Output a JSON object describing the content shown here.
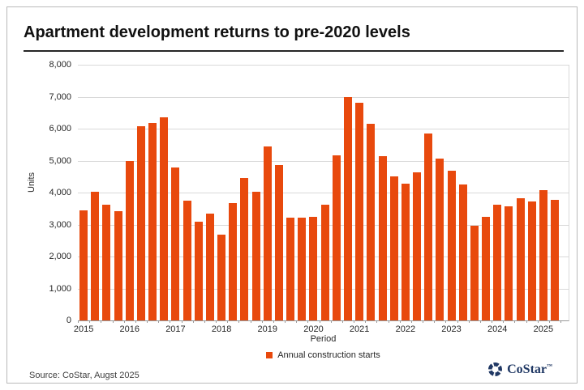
{
  "title": "Apartment development returns to pre-2020 levels",
  "source": "Source: CoStar, Augst 2025",
  "logo": {
    "text": "CoStar",
    "tm": "™",
    "mark": "costar-pinwheel-icon",
    "color": "#203864"
  },
  "colors": {
    "bar": "#E8490D",
    "grid": "#d9d9d9",
    "axis": "#999999",
    "title_rule": "#262626"
  },
  "chart_data": {
    "type": "bar",
    "title": "Apartment development returns to pre-2020 levels",
    "xlabel": "Period",
    "ylabel": "Units",
    "ylim": [
      0,
      8000
    ],
    "ytick_step": 1000,
    "ytick_labels": [
      "0",
      "1,000",
      "2,000",
      "3,000",
      "4,000",
      "5,000",
      "6,000",
      "7,000",
      "8,000"
    ],
    "grid": true,
    "legend_position": "bottom",
    "x_year_labels": [
      "2015",
      "2016",
      "2017",
      "2018",
      "2019",
      "2020",
      "2021",
      "2022",
      "2023",
      "2024",
      "2025"
    ],
    "x": [
      "2015 Q1",
      "2015 Q2",
      "2015 Q3",
      "2015 Q4",
      "2016 Q1",
      "2016 Q2",
      "2016 Q3",
      "2016 Q4",
      "2017 Q1",
      "2017 Q2",
      "2017 Q3",
      "2017 Q4",
      "2018 Q1",
      "2018 Q2",
      "2018 Q3",
      "2018 Q4",
      "2019 Q1",
      "2019 Q2",
      "2019 Q3",
      "2019 Q4",
      "2020 Q1",
      "2020 Q2",
      "2020 Q3",
      "2020 Q4",
      "2021 Q1",
      "2021 Q2",
      "2021 Q3",
      "2021 Q4",
      "2022 Q1",
      "2022 Q2",
      "2022 Q3",
      "2022 Q4",
      "2023 Q1",
      "2023 Q2",
      "2023 Q3",
      "2023 Q4",
      "2024 Q1",
      "2024 Q2",
      "2024 Q3",
      "2024 Q4",
      "2025 Q1",
      "2025 Q2"
    ],
    "series": [
      {
        "name": "Annual construction starts",
        "values": [
          3440,
          4020,
          3610,
          3430,
          4980,
          6080,
          6180,
          6350,
          4790,
          3750,
          3090,
          3340,
          2680,
          3670,
          4450,
          4020,
          5440,
          4860,
          3210,
          3220,
          3250,
          3620,
          5170,
          6990,
          6800,
          6160,
          5130,
          4500,
          4290,
          4630,
          5850,
          5060,
          4690,
          4250,
          2950,
          3230,
          3630,
          3560,
          3820,
          3710,
          4080,
          3780
        ]
      }
    ]
  }
}
